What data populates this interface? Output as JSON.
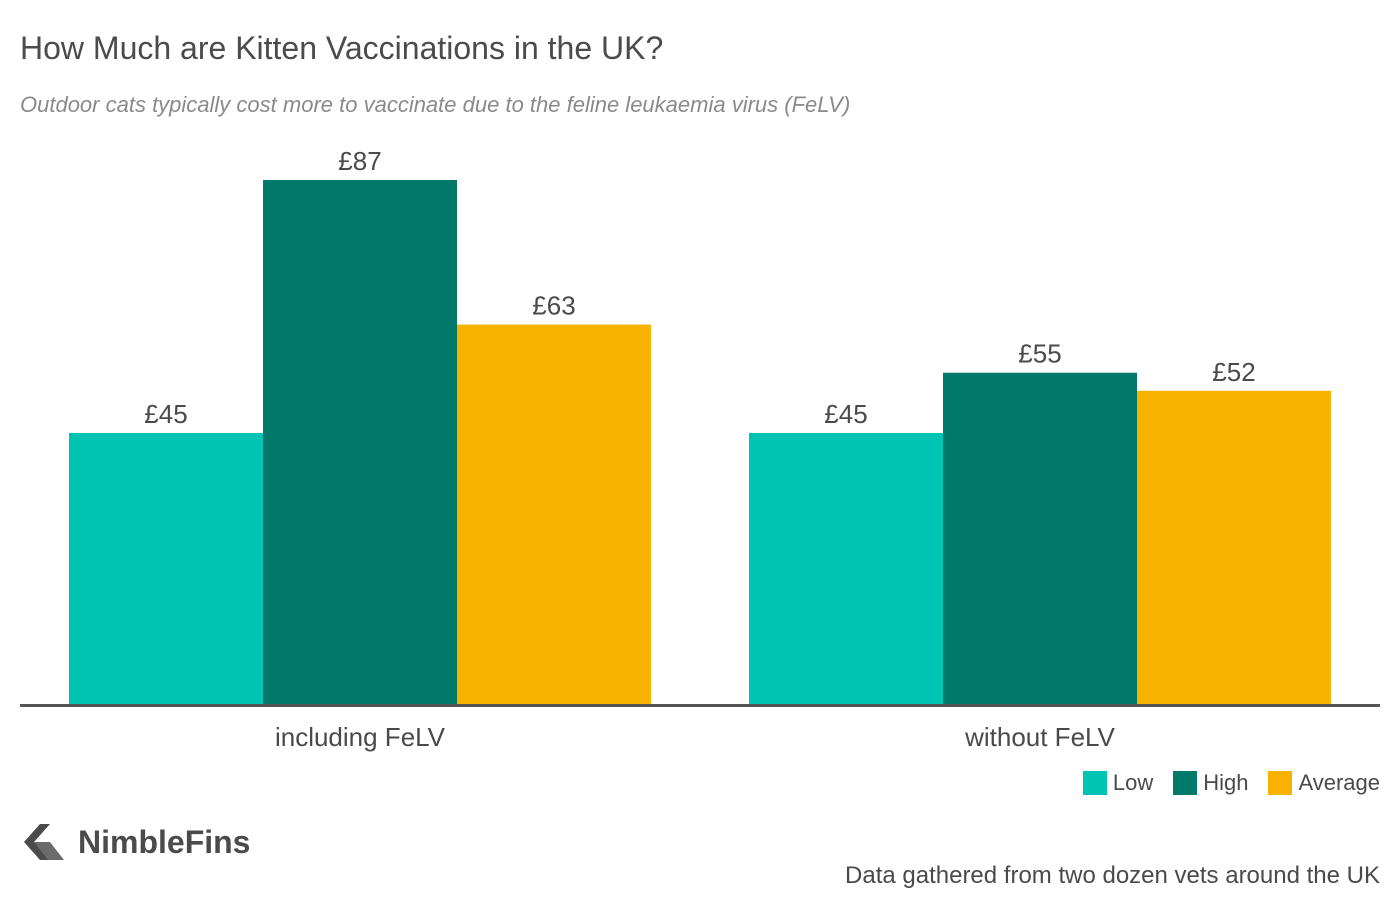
{
  "title": "How Much are Kitten Vaccinations in the UK?",
  "subtitle": "Outdoor cats typically cost more to vaccinate due to the feline leukaemia virus (FeLV)",
  "brand": "NimbleFins",
  "source": "Data gathered from two dozen vets around the UK",
  "colors": {
    "Low": "#00c4b3",
    "High": "#00786a",
    "Average": "#f8b300",
    "axis": "#555555",
    "label": "#4a4a4a"
  },
  "chart_data": {
    "type": "bar",
    "categories": [
      "including FeLV",
      "without FeLV"
    ],
    "series": [
      {
        "name": "Low",
        "values": [
          45,
          45
        ]
      },
      {
        "name": "High",
        "values": [
          87,
          55
        ]
      },
      {
        "name": "Average",
        "values": [
          63,
          52
        ]
      }
    ],
    "value_prefix": "£",
    "ylim": [
      0,
      90
    ],
    "grid": false,
    "legend_position": "bottom-right"
  }
}
